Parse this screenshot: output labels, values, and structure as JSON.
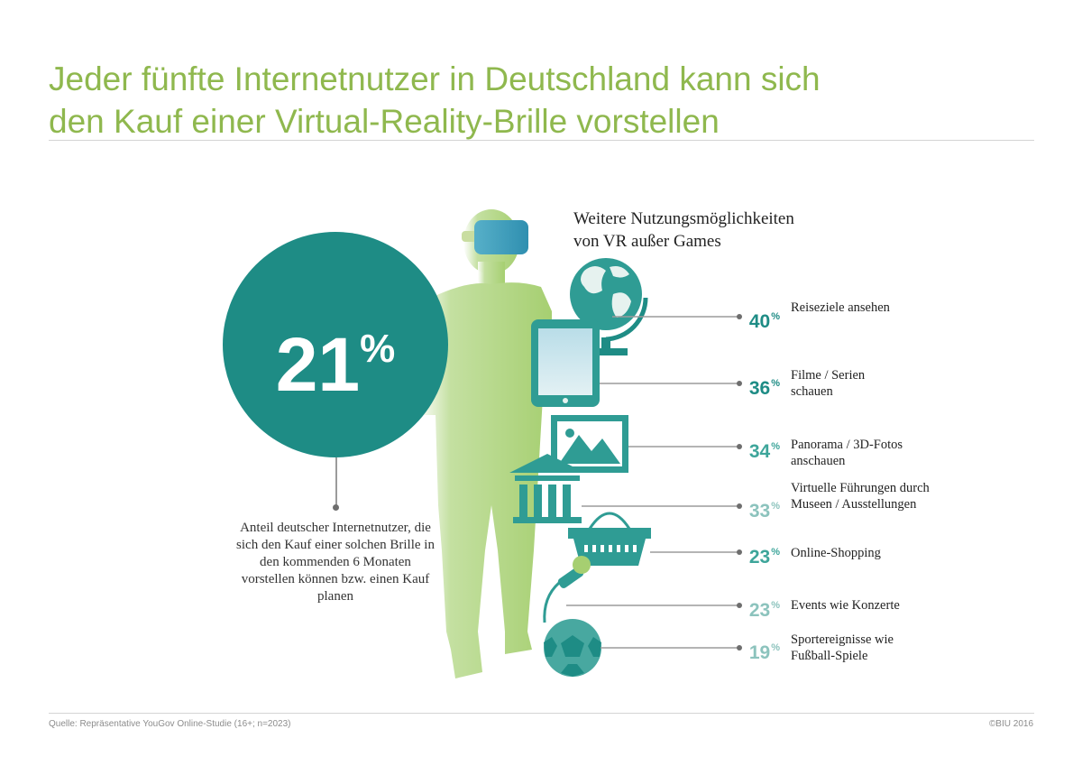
{
  "header": {
    "title_line1": "Jeder fünfte Internetnutzer in Deutschland kann sich",
    "title_line2": "den Kauf einer Virtual-Reality-Brille vorstellen"
  },
  "highlight": {
    "value": "21",
    "unit": "%",
    "description": "Anteil deutscher Internetnutzer, die sich den Kauf einer solchen Brille in den kommenden 6 Monaten vorstellen können bzw. einen Kauf planen"
  },
  "footer": {
    "source": "Quelle: Repräsentative YouGov Online-Studie (16+; n=2023)",
    "copyright": "©BIU 2016"
  },
  "colors": {
    "title": "#8fb84e",
    "circle": "#1e8c85",
    "teal_dark": "#1e8c85",
    "teal_mid": "#3da59a",
    "teal_light": "#8cc3bd",
    "figure_green": "#a6cf71"
  },
  "chart_data": {
    "type": "bar",
    "title": "Weitere Nutzungsmöglichkeiten von VR außer Games",
    "title_line1": "Weitere Nutzungsmöglichkeiten",
    "title_line2": "von VR außer Games",
    "unit": "%",
    "categories": [
      "Reiseziele ansehen",
      "Filme / Serien schauen",
      "Panorama / 3D-Fotos anschauen",
      "Virtuelle Führungen durch Museen / Ausstellungen",
      "Online-Shopping",
      "Events wie Konzerte",
      "Sportereignisse wie Fußball-Spiele"
    ],
    "values": [
      40,
      36,
      34,
      33,
      23,
      23,
      19
    ],
    "icons": [
      "globe-icon",
      "tablet-icon",
      "picture-icon",
      "museum-icon",
      "shopping-basket-icon",
      "microphone-icon",
      "football-icon"
    ]
  }
}
